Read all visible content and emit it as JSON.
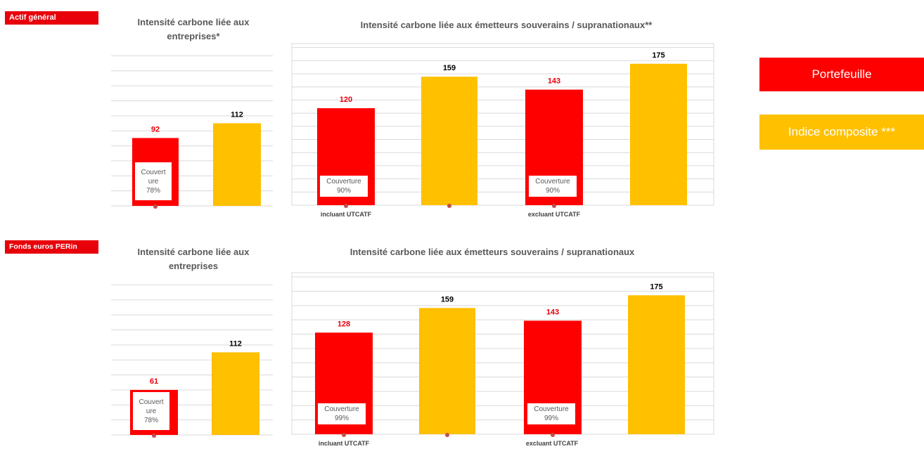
{
  "sections": [
    {
      "tag": "Actif général",
      "corp_title": "Intensité carbone liée aux entreprises*",
      "sov_title": "Intensité carbone liée aux émetteurs souverains / supranationaux**"
    },
    {
      "tag": "Fonds euros PERin",
      "corp_title": "Intensité carbone liée aux entreprises",
      "sov_title": "Intensité carbone liée aux émetteurs souverains / supranationaux"
    }
  ],
  "legend": {
    "portfolio": "Portefeuille",
    "index": "Indice composite ***"
  },
  "colors": {
    "portfolio": "#ff0000",
    "index": "#ffc000",
    "portfolio_label": "#e8000b",
    "index_label": "#000000",
    "grid": "#d9d9d9"
  },
  "chart_data": [
    {
      "type": "bar",
      "title": "Intensité carbone liée aux entreprises*",
      "series": [
        {
          "name": "Portefeuille",
          "values": [
            92
          ]
        },
        {
          "name": "Indice composite ***",
          "values": [
            112
          ]
        }
      ],
      "data_labels": [
        "92",
        "112"
      ],
      "coverage": "Couverture 78%",
      "coverage_lines": [
        "Couvert",
        "ure",
        "78%"
      ],
      "ylim": [
        0,
        200
      ]
    },
    {
      "type": "bar",
      "title": "Intensité carbone liée aux émetteurs souverains / supranationaux**",
      "categories": [
        "incluant UTCATF",
        "excluant UTCATF"
      ],
      "series": [
        {
          "name": "Portefeuille",
          "values": [
            120,
            143
          ]
        },
        {
          "name": "Indice composite ***",
          "values": [
            159,
            175
          ]
        }
      ],
      "data_labels": [
        "120",
        "159",
        "143",
        "175"
      ],
      "coverage": [
        "Couverture 90%",
        "Couverture 90%"
      ],
      "coverage_lines": [
        [
          "Couverture",
          "90%"
        ],
        [
          "Couverture",
          "90%"
        ]
      ],
      "ylim": [
        0,
        200
      ]
    },
    {
      "type": "bar",
      "title": "Intensité carbone liée aux entreprises",
      "series": [
        {
          "name": "Portefeuille",
          "values": [
            61
          ]
        },
        {
          "name": "Indice composite ***",
          "values": [
            112
          ]
        }
      ],
      "data_labels": [
        "61",
        "112"
      ],
      "coverage": "Couverture 78%",
      "coverage_lines": [
        "Couvert",
        "ure",
        "78%"
      ],
      "ylim": [
        0,
        200
      ]
    },
    {
      "type": "bar",
      "title": "Intensité carbone liée aux émetteurs souverains / supranationaux",
      "categories": [
        "incluant UTCATF",
        "excluant UTCATF"
      ],
      "series": [
        {
          "name": "Portefeuille",
          "values": [
            128,
            143
          ]
        },
        {
          "name": "Indice composite ***",
          "values": [
            159,
            175
          ]
        }
      ],
      "data_labels": [
        "128",
        "159",
        "143",
        "175"
      ],
      "coverage": [
        "Couverture 99%",
        "Couverture 99%"
      ],
      "coverage_lines": [
        [
          "Couverture",
          "99%"
        ],
        [
          "Couverture",
          "99%"
        ]
      ],
      "ylim": [
        0,
        200
      ]
    }
  ]
}
